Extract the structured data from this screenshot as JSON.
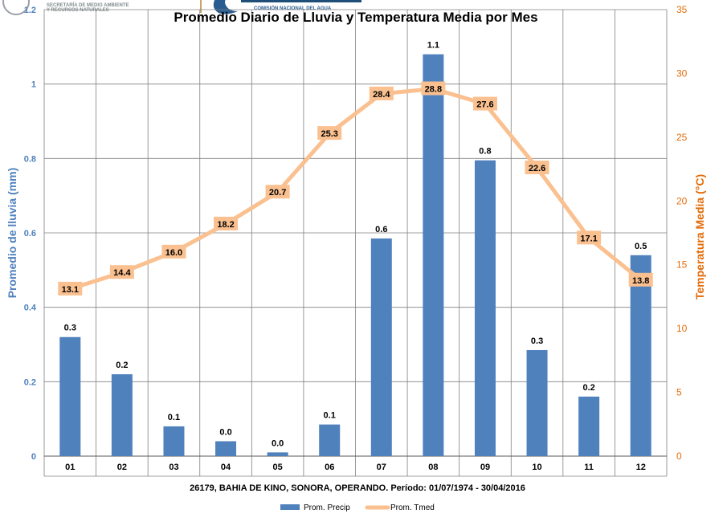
{
  "logos": {
    "semarnat_line1": "SECRETARÍA DE MEDIO AMBIENTE",
    "semarnat_line2": "Y RECURSOS NATURALES",
    "conagua_sub": "COMISIÓN NACIONAL DEL AGUA"
  },
  "colors": {
    "precip": "#4f81bd",
    "tmed": "#fac090",
    "left_axis_label": "#4f81bd",
    "right_axis_label": "#e36c09",
    "grid": "#808080"
  },
  "chart_data": {
    "type": "bar",
    "title": "Promedio Diario de Lluvia y Temperatura Media por Mes",
    "categories": [
      "01",
      "02",
      "03",
      "04",
      "05",
      "06",
      "07",
      "08",
      "09",
      "10",
      "11",
      "12"
    ],
    "xlabel": "26179, BAHIA DE KINO, SONORA, OPERANDO. Período: 01/07/1974 - 30/04/2016",
    "ylabel": "Promedio de lluvia (mm)",
    "y2label": "Temperatura Media (°C)",
    "ylim": [
      0,
      1.2
    ],
    "y2lim": [
      0,
      35
    ],
    "yticks": [
      "0",
      "0.2",
      "0.4",
      "0.6",
      "0.8",
      "1",
      "1.2"
    ],
    "y2ticks": [
      "0",
      "5",
      "10",
      "15",
      "20",
      "25",
      "30",
      "35"
    ],
    "grid": true,
    "legend_position": "bottom-center",
    "series": [
      {
        "name": "Prom. Precip",
        "kind": "bar",
        "axis": "left",
        "values": [
          0.32,
          0.22,
          0.08,
          0.04,
          0.01,
          0.085,
          0.585,
          1.08,
          0.795,
          0.285,
          0.16,
          0.54
        ],
        "labels": [
          "0.3",
          "0.2",
          "0.1",
          "0.0",
          "0.0",
          "0.1",
          "0.6",
          "1.1",
          "0.8",
          "0.3",
          "0.2",
          "0.5"
        ]
      },
      {
        "name": "Prom. Tmed",
        "kind": "line",
        "axis": "right",
        "values": [
          13.1,
          14.4,
          16.0,
          18.2,
          20.7,
          25.3,
          28.4,
          28.8,
          27.6,
          22.6,
          17.1,
          13.8
        ],
        "labels": [
          "13.1",
          "14.4",
          "16.0",
          "18.2",
          "20.7",
          "25.3",
          "28.4",
          "28.8",
          "27.6",
          "22.6",
          "17.1",
          "13.8"
        ]
      }
    ]
  }
}
